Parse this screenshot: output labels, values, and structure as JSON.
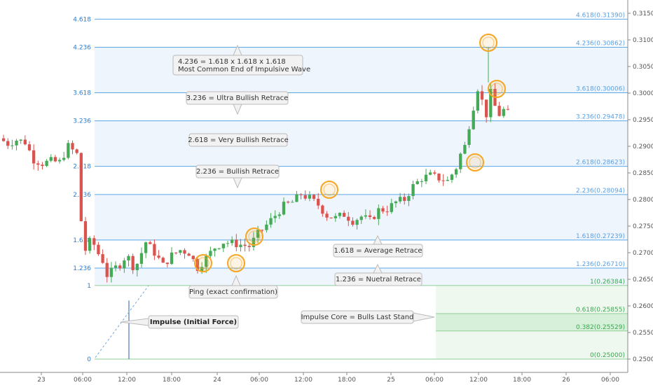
{
  "chart_data": {
    "type": "candlestick",
    "price_axis": {
      "ticks": [
        "0.31500",
        "0.31000",
        "0.30500",
        "0.30000",
        "0.29500",
        "0.29000",
        "0.28500",
        "0.28000",
        "0.27500",
        "0.27000",
        "0.26500",
        "0.26000",
        "0.25500",
        "0.25000"
      ],
      "range": [
        0.2475,
        0.3175
      ]
    },
    "time_axis": {
      "ticks": [
        "23",
        "06:00",
        "12:00",
        "18:00",
        "24",
        "06:00",
        "12:00",
        "18:00",
        "25",
        "06:00",
        "12:00",
        "18:00",
        "26",
        "06:00"
      ]
    },
    "fib_levels": [
      {
        "ratio": "0",
        "price": 0.25,
        "right_label": "0(0.25000)",
        "style": "green"
      },
      {
        "ratio": "",
        "price": 0.25529,
        "right_label": "0.382(0.25529)",
        "style": "green"
      },
      {
        "ratio": "",
        "price": 0.25855,
        "right_label": "0.618(0.25855)",
        "style": "green"
      },
      {
        "ratio": "1",
        "price": 0.26384,
        "right_label": "1(0.26384)",
        "style": "green"
      },
      {
        "ratio": "1.236",
        "price": 0.2671,
        "right_label": "1.236(0.26710)",
        "style": "blue"
      },
      {
        "ratio": "1.618",
        "price": 0.27239,
        "right_label": "1.618(0.27239)",
        "style": "blue"
      },
      {
        "ratio": "2.236",
        "price": 0.28094,
        "right_label": "2.236(0.28094)",
        "style": "blue"
      },
      {
        "ratio": "2.618",
        "price": 0.28623,
        "right_label": "2.618(0.28623)",
        "style": "blue"
      },
      {
        "ratio": "3.236",
        "price": 0.29478,
        "right_label": "3.236(0.29478)",
        "style": "blue"
      },
      {
        "ratio": "3.618",
        "price": 0.30006,
        "right_label": "3.618(0.30006)",
        "style": "blue"
      },
      {
        "ratio": "4.236",
        "price": 0.30862,
        "right_label": "4.236(0.30862)",
        "style": "blue"
      },
      {
        "ratio": "4.618",
        "price": 0.3139,
        "right_label": "4.618(0.31390)",
        "style": "blue"
      }
    ],
    "annotations": [
      {
        "lines": [
          "4.236 = 1.618 x 1.618 x 1.618",
          "Most Common End of Impulsive Wave"
        ],
        "bold": false
      },
      {
        "lines": [
          "3.236 = Ultra Bullish Retrace"
        ],
        "bold": false
      },
      {
        "lines": [
          "2.618 = Very Bullish Retrace"
        ],
        "bold": false
      },
      {
        "lines": [
          "2.236 = Bullish Retrace"
        ],
        "bold": false
      },
      {
        "lines": [
          "1.618 = Average Retrace"
        ],
        "bold": false
      },
      {
        "lines": [
          "1.236 = Nuetral Retrace"
        ],
        "bold": false
      },
      {
        "lines": [
          "Ping (exact confirmation)"
        ],
        "bold": false
      },
      {
        "lines": [
          "Impulse (Initial Force)"
        ],
        "bold": true
      },
      {
        "lines": [
          "Impulse Core = Bulls Last Stand"
        ],
        "bold": false
      }
    ],
    "price_path": [
      [
        0,
        0.2915
      ],
      [
        2,
        0.2905
      ],
      [
        4,
        0.2912
      ],
      [
        6,
        0.2908
      ],
      [
        8,
        0.2875
      ],
      [
        10,
        0.2868
      ],
      [
        12,
        0.2872
      ],
      [
        14,
        0.287
      ],
      [
        16,
        0.29
      ],
      [
        18,
        0.2885
      ],
      [
        19,
        0.276
      ],
      [
        20,
        0.2705
      ],
      [
        21,
        0.272
      ],
      [
        22,
        0.2715
      ],
      [
        23,
        0.2698
      ],
      [
        24,
        0.2685
      ],
      [
        25,
        0.2658
      ],
      [
        26,
        0.2664
      ],
      [
        27,
        0.2672
      ],
      [
        28,
        0.2678
      ],
      [
        29,
        0.269
      ],
      [
        30,
        0.269
      ],
      [
        31,
        0.2675
      ],
      [
        32,
        0.268
      ],
      [
        34,
        0.272
      ],
      [
        36,
        0.27
      ],
      [
        38,
        0.2676
      ],
      [
        40,
        0.2695
      ],
      [
        42,
        0.2705
      ],
      [
        44,
        0.27
      ],
      [
        46,
        0.2672
      ],
      [
        48,
        0.269
      ],
      [
        50,
        0.271
      ],
      [
        52,
        0.272
      ],
      [
        54,
        0.2718
      ],
      [
        56,
        0.2715
      ],
      [
        58,
        0.2712
      ],
      [
        60,
        0.2735
      ],
      [
        62,
        0.2752
      ],
      [
        64,
        0.277
      ],
      [
        66,
        0.2788
      ],
      [
        68,
        0.2795
      ],
      [
        70,
        0.281
      ],
      [
        72,
        0.2802
      ],
      [
        74,
        0.279
      ],
      [
        76,
        0.277
      ],
      [
        78,
        0.2765
      ],
      [
        80,
        0.2772
      ],
      [
        82,
        0.276
      ],
      [
        84,
        0.2768
      ],
      [
        86,
        0.276
      ],
      [
        88,
        0.278
      ],
      [
        90,
        0.2782
      ],
      [
        92,
        0.2795
      ],
      [
        94,
        0.28
      ],
      [
        96,
        0.2825
      ],
      [
        98,
        0.284
      ],
      [
        100,
        0.2845
      ],
      [
        102,
        0.284
      ],
      [
        104,
        0.2835
      ],
      [
        106,
        0.286
      ],
      [
        107,
        0.2885
      ],
      [
        108,
        0.29
      ],
      [
        109,
        0.294
      ],
      [
        110,
        0.2975
      ],
      [
        111,
        0.301
      ],
      [
        112,
        0.2985
      ],
      [
        113,
        0.296
      ],
      [
        114,
        0.3
      ],
      [
        115,
        0.2975
      ],
      [
        116,
        0.296
      ],
      [
        117,
        0.2968
      ],
      [
        118,
        0.2962
      ]
    ],
    "candle_count": 118,
    "colors": {
      "up": "#44aa55",
      "down": "#d9534f",
      "fib_line": "#5aa7e6",
      "band": "#eef5fd",
      "green_zone": "#d7f0d9",
      "highlight": "#f5a623"
    }
  }
}
